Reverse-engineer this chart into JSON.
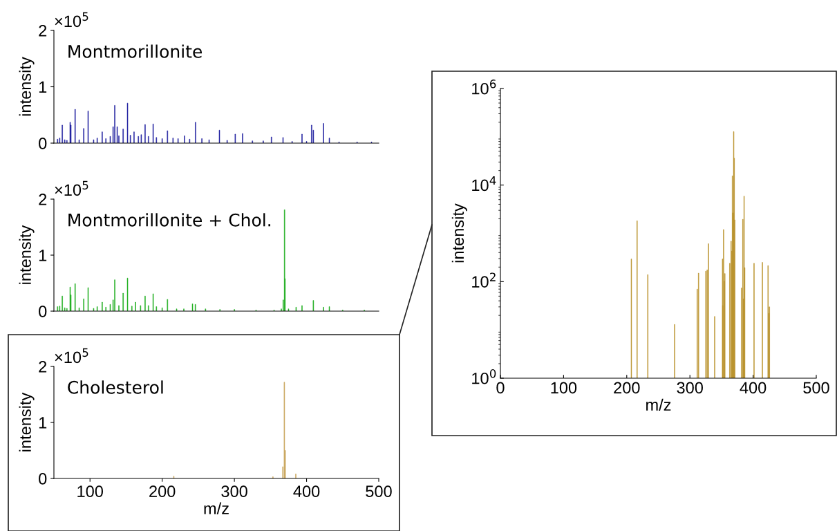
{
  "chart_data": [
    {
      "type": "bar",
      "annotations": [
        "×10$^{5}$",
        "Montmorillonite"
      ],
      "ylabel": "intensity",
      "color": "#1f1fa0",
      "x": [
        55,
        58,
        61.6,
        65,
        68,
        72.5,
        73.5,
        79.4,
        85,
        91.3,
        97.4,
        105,
        110,
        116.9,
        122,
        128,
        132,
        134.3,
        137.7,
        140,
        145.9,
        152,
        156,
        161,
        167,
        171,
        176.3,
        181,
        187.5,
        192,
        200,
        207.3,
        215,
        222,
        230.9,
        238,
        246.2,
        255,
        265,
        279.3,
        290,
        301.2,
        311.4,
        325,
        340,
        351.4,
        367.4,
        380,
        393.7,
        400,
        407,
        409.4,
        423.4,
        431.6,
        445,
        470,
        490
      ],
      "values": [
        0.07,
        0.09,
        0.32,
        0.06,
        0.05,
        0.37,
        0.32,
        0.6,
        0.06,
        0.26,
        0.57,
        0.06,
        0.09,
        0.2,
        0.08,
        0.12,
        0.29,
        0.67,
        0.29,
        0.13,
        0.25,
        0.71,
        0.14,
        0.2,
        0.12,
        0.15,
        0.33,
        0.12,
        0.34,
        0.1,
        0.08,
        0.22,
        0.09,
        0.08,
        0.13,
        0.07,
        0.37,
        0.08,
        0.06,
        0.23,
        0.05,
        0.16,
        0.17,
        0.04,
        0.04,
        0.11,
        0.1,
        0.03,
        0.16,
        0.03,
        0.32,
        0.23,
        0.35,
        0.09,
        0.02,
        0.02,
        0.02
      ],
      "xlim": [
        50,
        500
      ],
      "ylim": [
        0,
        2
      ],
      "yticks": [
        0,
        1,
        2
      ],
      "tick_labels": "y"
    },
    {
      "type": "bar",
      "annotations": [
        "×10$^{5}$",
        "Montmorillonite + Chol."
      ],
      "ylabel": "intensity",
      "color": "#1fae1f",
      "x": [
        55,
        58,
        61.6,
        65,
        68,
        72.5,
        73.5,
        79.4,
        85,
        91.3,
        97.4,
        105,
        110,
        116.9,
        122,
        128,
        132,
        134.3,
        140,
        145.9,
        152,
        158,
        163,
        170,
        176.3,
        181,
        187.5,
        192,
        200,
        207.3,
        220,
        230,
        242,
        246,
        260,
        280,
        300,
        330,
        355,
        365,
        367.7,
        369.5,
        370.1,
        375,
        385.5,
        393.7,
        409.4,
        423.4,
        431.6,
        450,
        480
      ],
      "values": [
        0.08,
        0.09,
        0.27,
        0.06,
        0.05,
        0.43,
        0.29,
        0.49,
        0.06,
        0.22,
        0.42,
        0.05,
        0.08,
        0.16,
        0.07,
        0.12,
        0.2,
        0.56,
        0.1,
        0.32,
        0.59,
        0.09,
        0.16,
        0.1,
        0.27,
        0.1,
        0.31,
        0.08,
        0.06,
        0.21,
        0.04,
        0.04,
        0.13,
        0.12,
        0.04,
        0.03,
        0.03,
        0.02,
        0.02,
        0.04,
        0.2,
        1.81,
        0.58,
        0.04,
        0.07,
        0.1,
        0.19,
        0.07,
        0.08,
        0.02,
        0.02
      ],
      "xlim": [
        50,
        500
      ],
      "ylim": [
        0,
        2
      ],
      "yticks": [
        0,
        1,
        2
      ],
      "tick_labels": "y"
    },
    {
      "type": "bar",
      "annotations": [
        "×10$^{5}$",
        "Cholesterol"
      ],
      "ylabel": "intensity",
      "xlabel": "m/z",
      "color": "#c8a45a",
      "x": [
        216.1,
        353.4,
        367.1,
        369.2,
        370.4,
        385.1
      ],
      "values": [
        0.04,
        0.03,
        0.21,
        1.72,
        0.5,
        0.08
      ],
      "xlim": [
        50,
        500
      ],
      "xticks": [
        100,
        200,
        300,
        400,
        500
      ],
      "ylim": [
        0,
        2
      ],
      "yticks": [
        0,
        1,
        2
      ]
    },
    {
      "type": "bar",
      "ylabel": "intensity",
      "xlabel": "m/z",
      "color": "#b8902a",
      "log": true,
      "x": [
        207.3,
        216.4,
        233.3,
        275.8,
        311.6,
        313.7,
        325.2,
        327.3,
        329.3,
        339.2,
        351.6,
        352,
        353.3,
        354.5,
        355.3,
        363.1,
        365.2,
        366.4,
        367.3,
        368.1,
        369.3,
        370.1,
        371,
        381.7,
        383.8,
        384.6,
        385.8,
        386.7,
        401.5,
        414.7,
        423.7,
        425,
        425.8
      ],
      "values": [
        295,
        1820,
        140,
        13,
        70,
        150,
        165,
        175,
        610,
        19,
        295,
        32,
        1200,
        102,
        147,
        240,
        690,
        430,
        15500,
        2650,
        128000,
        36000,
        1900,
        74,
        1950,
        44,
        5900,
        195,
        240,
        250,
        215,
        22,
        30
      ],
      "xlim": [
        0,
        500
      ],
      "xticks": [
        0,
        100,
        200,
        300,
        400,
        500
      ],
      "ylim": [
        1,
        1000000
      ],
      "yticks": [
        {
          "value": 1,
          "label": "10$^{0}$"
        },
        {
          "value": 100,
          "label": "10$^{2}$"
        },
        {
          "value": 10000,
          "label": "10$^{4}$"
        },
        {
          "value": 1000000,
          "label": "10$^{6}$"
        }
      ]
    }
  ]
}
